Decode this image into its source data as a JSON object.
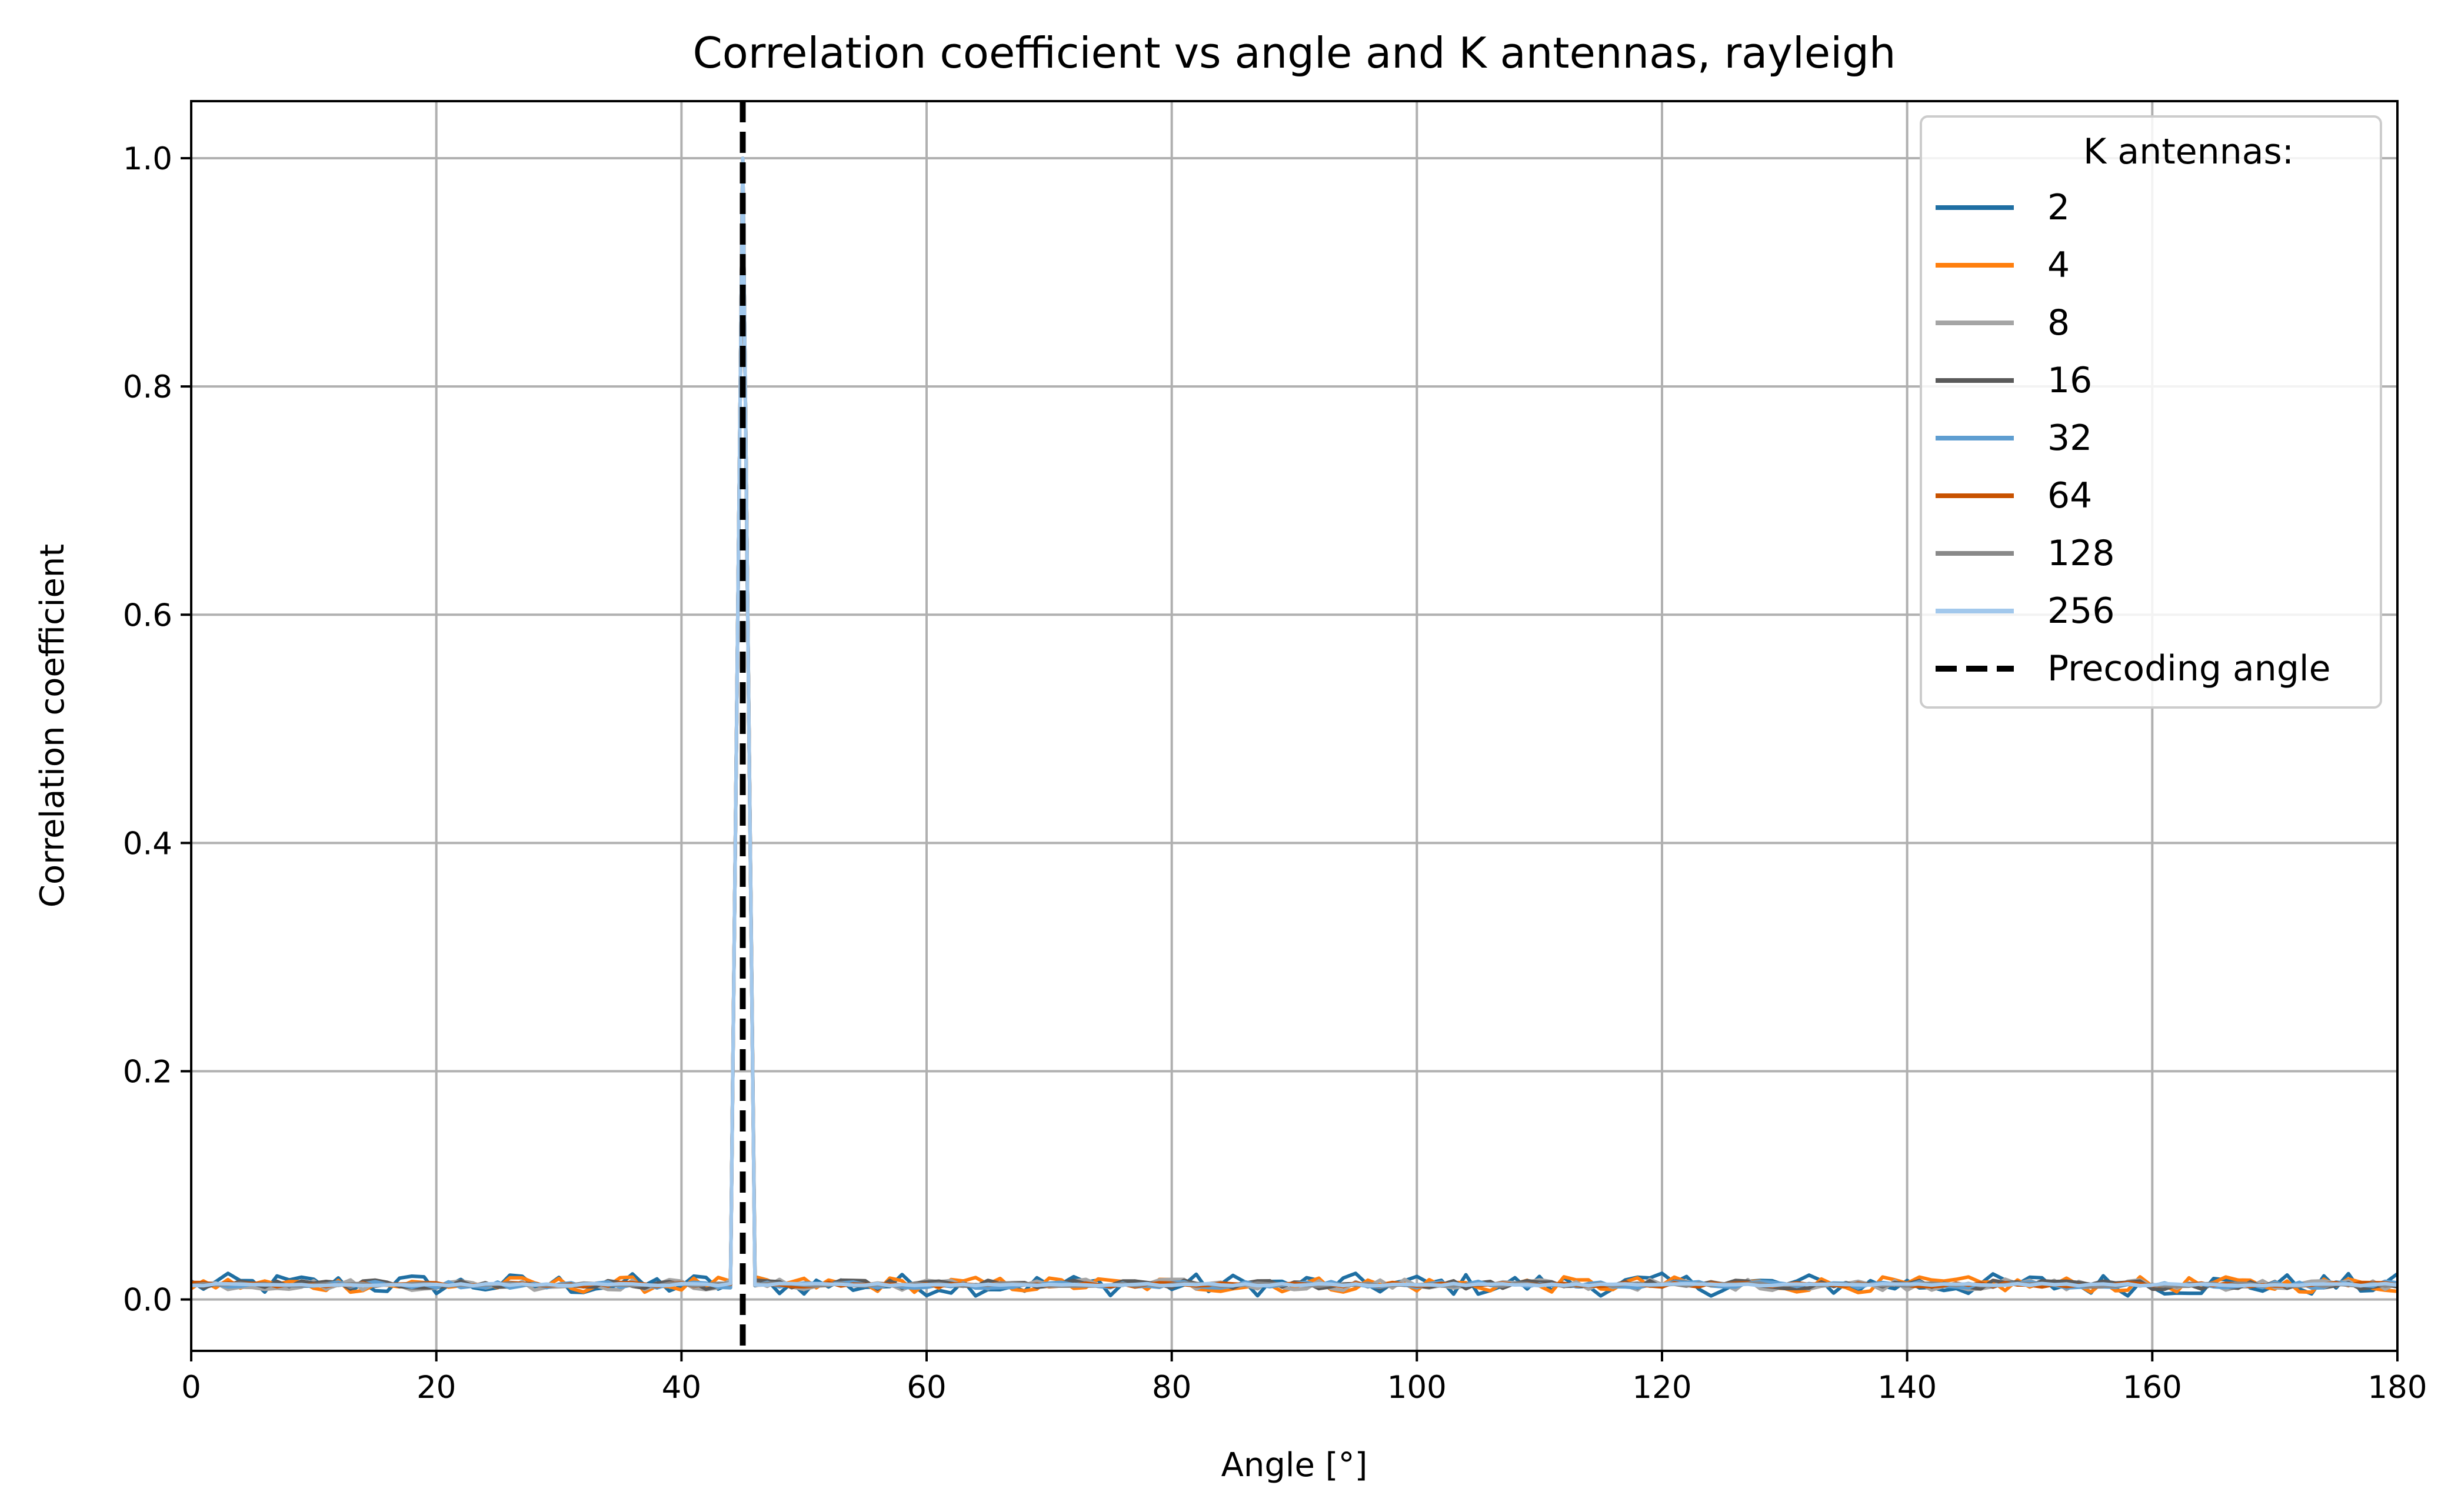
{
  "chart_data": {
    "type": "line",
    "title": "Correlation coefficient vs angle and K antennas, rayleigh",
    "xlabel": "Angle [°]",
    "ylabel": "Correlation coefficient",
    "xlim": [
      0,
      180
    ],
    "ylim": [
      -0.045,
      1.05
    ],
    "xticks": [
      0,
      20,
      40,
      60,
      80,
      100,
      120,
      140,
      160,
      180
    ],
    "xtick_labels": [
      "0",
      "20",
      "40",
      "60",
      "80",
      "100",
      "120",
      "140",
      "160",
      "180"
    ],
    "yticks": [
      0.0,
      0.2,
      0.4,
      0.6,
      0.8,
      1.0
    ],
    "ytick_labels": [
      "0.0",
      "0.2",
      "0.4",
      "0.6",
      "0.8",
      "1.0"
    ],
    "grid": true,
    "legend": {
      "title": "K antennas:",
      "position": "top-right"
    },
    "peak_angle": 45,
    "peak_value": 1.0,
    "baseline_value": 0.013,
    "series": [
      {
        "name": "2",
        "color": "#1f6fa3",
        "noise": 0.01
      },
      {
        "name": "4",
        "color": "#ff7f0e",
        "noise": 0.007
      },
      {
        "name": "8",
        "color": "#a5a5a5",
        "noise": 0.005
      },
      {
        "name": "16",
        "color": "#5a5a5a",
        "noise": 0.004
      },
      {
        "name": "32",
        "color": "#5f9ed1",
        "noise": 0.003
      },
      {
        "name": "64",
        "color": "#c85200",
        "noise": 0.002
      },
      {
        "name": "128",
        "color": "#898989",
        "noise": 0.0015
      },
      {
        "name": "256",
        "color": "#a2c8ec",
        "noise": 0.001
      }
    ],
    "reference_line": {
      "name": "Precoding angle",
      "x": 45,
      "color": "#000000",
      "style": "dashed"
    }
  }
}
